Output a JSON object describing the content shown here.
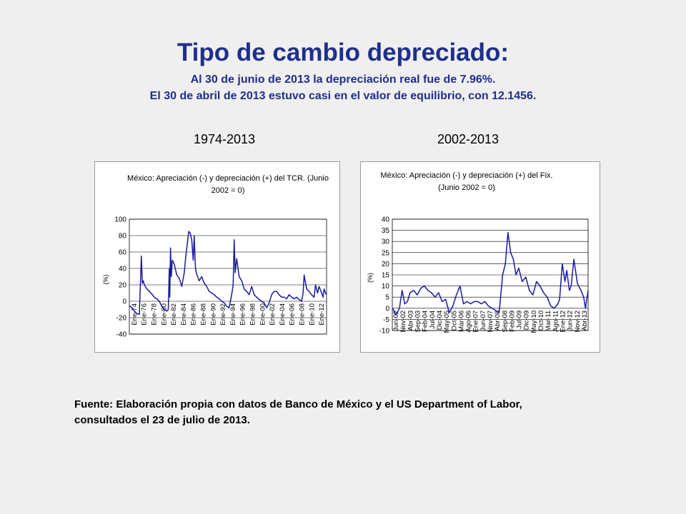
{
  "header": {
    "title": "Tipo de cambio depreciado:",
    "subtitle_1": "Al 30 de junio de 2013 la depreciación real fue de 7.96%.",
    "subtitle_2": "El 30 de abril de 2013 estuvo casi en el valor de equilibrio, con 12.1456."
  },
  "periods": {
    "left": "1974-2013",
    "right": "2002-2013"
  },
  "source": {
    "line_1": "Fuente: Elaboración propia con datos de Banco de México y el US Department of Labor,",
    "line_2": "consultados el 23 de julio de 2013."
  },
  "colors": {
    "title": "#1f2f8c",
    "series": "#1a1aa0",
    "background": "#efefef"
  },
  "chart_data": [
    {
      "type": "line",
      "title": "México: Apreciación (-) y depreciación (+) del TCR. (Junio 2002 = 0)",
      "title_lines": [
        "México: Apreciación (-) y depreciación (+) del TCR. (Junio",
        "2002 = 0)"
      ],
      "ylabel": "(%)",
      "ylim": [
        -40,
        100
      ],
      "yticks": [
        100,
        80,
        60,
        40,
        20,
        0,
        -20,
        -40
      ],
      "xlim": [
        1974,
        2013.5
      ],
      "x_tick_labels": [
        "Ene-74",
        "Ene-76",
        "Ene-78",
        "Ene-80",
        "Ene-82",
        "Ene-84",
        "Ene-86",
        "Ene-88",
        "Ene-90",
        "Ene-92",
        "Ene-94",
        "Ene-96",
        "Ene-98",
        "Ene-00",
        "Ene-02",
        "Ene-04",
        "Ene-06",
        "Ene-08",
        "Ene-10",
        "Ene-12"
      ],
      "grid": true,
      "series": [
        {
          "x": [
            1974.0,
            1974.5,
            1975.0,
            1975.5,
            1976.0,
            1976.4,
            1976.6,
            1976.8,
            1977.0,
            1977.5,
            1978.0,
            1978.5,
            1979.0,
            1979.5,
            1980.0,
            1980.5,
            1981.0,
            1981.5,
            1981.8,
            1982.0,
            1982.1,
            1982.25,
            1982.4,
            1982.6,
            1983.0,
            1983.5,
            1984.0,
            1984.5,
            1985.0,
            1985.3,
            1985.6,
            1985.9,
            1986.2,
            1986.5,
            1986.8,
            1987.0,
            1987.2,
            1987.3,
            1987.5,
            1987.8,
            1988.0,
            1988.5,
            1989.0,
            1989.5,
            1990.0,
            1990.5,
            1991.0,
            1991.5,
            1992.0,
            1992.5,
            1993.0,
            1993.5,
            1994.0,
            1994.5,
            1994.8,
            1995.0,
            1995.2,
            1995.5,
            1996.0,
            1996.5,
            1997.0,
            1997.5,
            1998.0,
            1998.5,
            1998.8,
            1999.0,
            1999.5,
            2000.0,
            2000.5,
            2001.0,
            2001.5,
            2002.0,
            2002.5,
            2003.0,
            2003.5,
            2004.0,
            2004.5,
            2005.0,
            2005.5,
            2006.0,
            2006.5,
            2007.0,
            2007.5,
            2008.0,
            2008.5,
            2008.8,
            2009.0,
            2009.2,
            2009.5,
            2010.0,
            2010.5,
            2011.0,
            2011.3,
            2011.7,
            2012.0,
            2012.4,
            2012.8,
            2013.0,
            2013.3,
            2013.5
          ],
          "y": [
            -5,
            -8,
            -12,
            -15,
            -16,
            55,
            22,
            25,
            20,
            15,
            12,
            9,
            5,
            3,
            0,
            -6,
            -10,
            -12,
            -10,
            40,
            5,
            65,
            30,
            50,
            45,
            32,
            28,
            18,
            35,
            55,
            70,
            85,
            83,
            75,
            50,
            80,
            45,
            38,
            33,
            28,
            25,
            30,
            22,
            18,
            12,
            10,
            8,
            5,
            3,
            0,
            -2,
            -6,
            -8,
            8,
            20,
            75,
            35,
            52,
            30,
            25,
            15,
            12,
            8,
            18,
            12,
            8,
            5,
            2,
            0,
            -2,
            -8,
            -2,
            8,
            12,
            12,
            8,
            5,
            5,
            3,
            8,
            5,
            3,
            5,
            2,
            0,
            10,
            32,
            25,
            15,
            12,
            8,
            5,
            20,
            10,
            18,
            12,
            5,
            15,
            10,
            8
          ]
        }
      ]
    },
    {
      "type": "line",
      "title": "México: Apreciación (-) y depreciación (+) del Fix. (Junio 2002 = 0)",
      "title_lines": [
        "México: Apreciación (-) y depreciación (+) del Fix.",
        "(Junio 2002 = 0)"
      ],
      "ylabel": "(%)",
      "ylim": [
        -10,
        40
      ],
      "yticks": [
        40,
        35,
        30,
        25,
        20,
        15,
        10,
        5,
        0,
        -5,
        -10
      ],
      "xlim": [
        2002.4,
        2013.4
      ],
      "x_tick_labels": [
        "Jun-02",
        "Nov-02",
        "Abr-03",
        "Sep-03",
        "Feb-04",
        "Jul-04",
        "Dic-04",
        "May-05",
        "Oct-05",
        "Mar-06",
        "Ago-06",
        "Ene-07",
        "Jun-07",
        "Nov-07",
        "Abr-08",
        "Sep-08",
        "Feb-09",
        "Jul-09",
        "Dic-09",
        "May-10",
        "Oct-10",
        "Mar-11",
        "Ago-11",
        "Ene-12",
        "Jun-12",
        "Nov-12",
        "Abr-13"
      ],
      "grid": true,
      "series": [
        {
          "x": [
            2002.42,
            2002.6,
            2002.8,
            2002.95,
            2003.1,
            2003.25,
            2003.4,
            2003.6,
            2003.8,
            2004.0,
            2004.2,
            2004.4,
            2004.6,
            2004.8,
            2005.0,
            2005.2,
            2005.4,
            2005.6,
            2005.8,
            2006.0,
            2006.2,
            2006.4,
            2006.6,
            2006.8,
            2007.0,
            2007.2,
            2007.4,
            2007.6,
            2007.8,
            2008.0,
            2008.2,
            2008.4,
            2008.6,
            2008.75,
            2008.9,
            2009.05,
            2009.2,
            2009.35,
            2009.5,
            2009.7,
            2009.9,
            2010.1,
            2010.3,
            2010.5,
            2010.7,
            2010.9,
            2011.1,
            2011.3,
            2011.5,
            2011.7,
            2011.8,
            2011.95,
            2012.1,
            2012.2,
            2012.35,
            2012.45,
            2012.6,
            2012.8,
            2013.0,
            2013.15,
            2013.25,
            2013.4
          ],
          "y": [
            0,
            -3,
            0,
            8,
            2,
            3,
            7,
            8,
            6,
            9,
            10,
            8,
            7,
            5,
            7,
            3,
            4,
            -2,
            1,
            6,
            10,
            2,
            3,
            2,
            3,
            3,
            2,
            3,
            1,
            0,
            -1,
            -2,
            15,
            20,
            34,
            25,
            22,
            15,
            18,
            12,
            14,
            8,
            6,
            12,
            10,
            7,
            5,
            1,
            0,
            2,
            4,
            20,
            12,
            17,
            8,
            10,
            22,
            11,
            8,
            5,
            0,
            8
          ]
        }
      ]
    }
  ]
}
